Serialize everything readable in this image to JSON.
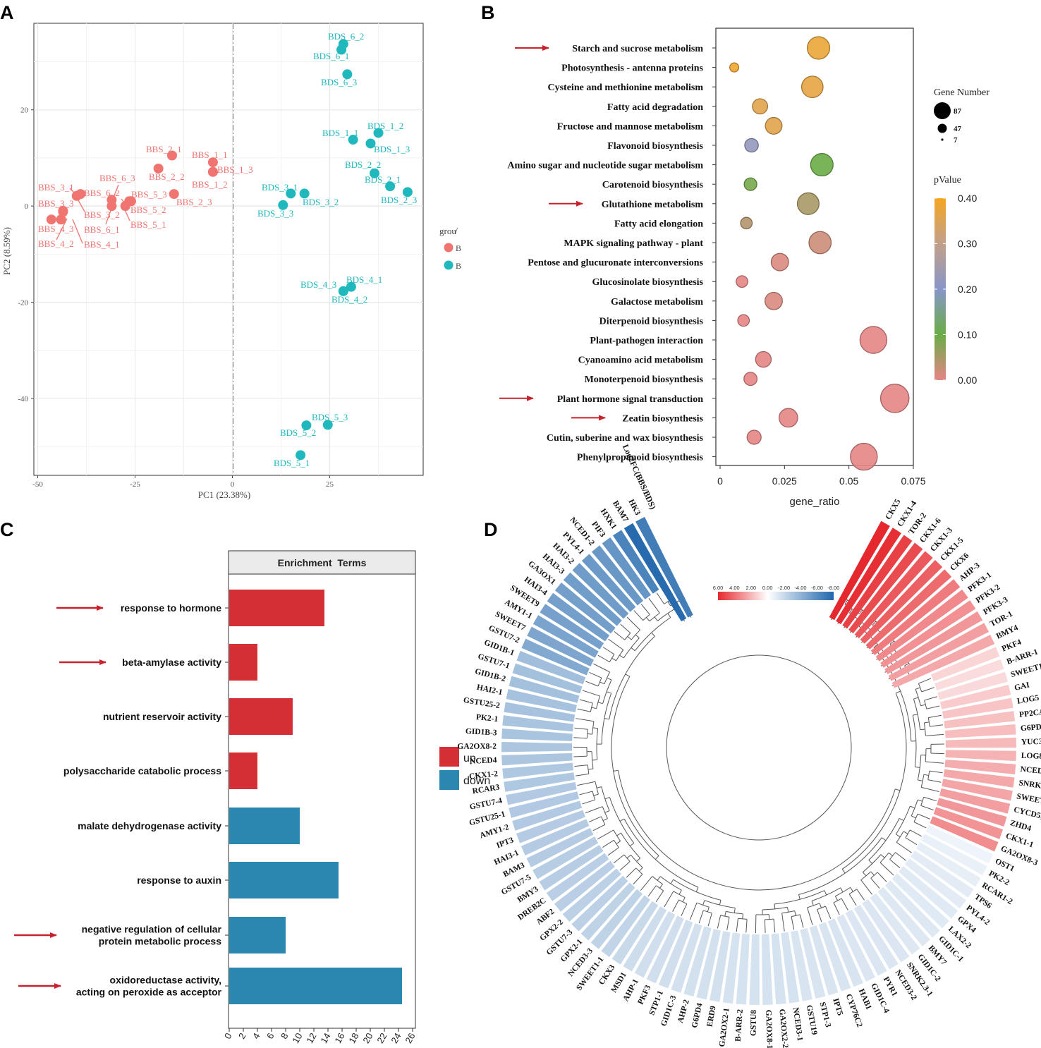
{
  "panel_letters": [
    "A",
    "B",
    "C",
    "D"
  ],
  "colors": {
    "bbs": "#f07470",
    "bds": "#1fb8bd",
    "up": "#d32f35",
    "down": "#2987b0",
    "arrow": "#c8232c",
    "heat_pos": "#e5282d",
    "heat_neg": "#2166ac"
  },
  "chart_data": [
    {
      "panel": "A",
      "type": "scatter",
      "xlabel": "PC1 (23.38%)",
      "ylabel": "PC2 (8.59%)",
      "xlim": [
        -51,
        49
      ],
      "ylim": [
        -56,
        38
      ],
      "xticks": [
        -50,
        -25,
        0,
        25
      ],
      "yticks": [
        -40,
        -20,
        0,
        20
      ],
      "legend": {
        "title": "grou̸",
        "entries": [
          "B",
          "B"
        ]
      },
      "series": [
        {
          "name": "BBS",
          "points": [
            {
              "label": "BBS_1_1",
              "x": -5,
              "y": 9.1
            },
            {
              "label": "BBS_1_2",
              "x": -5,
              "y": 7.1
            },
            {
              "label": "BBS_1_3",
              "x": -5,
              "y": 7.1
            },
            {
              "label": "BBS_2_1",
              "x": -15.5,
              "y": 10.5
            },
            {
              "label": "BBS_2_2",
              "x": -19,
              "y": 7.8
            },
            {
              "label": "BBS_2_3",
              "x": -15,
              "y": 2.5
            },
            {
              "label": "BBS_3_1",
              "x": -40,
              "y": 2.1
            },
            {
              "label": "BBS_3_2",
              "x": -43.5,
              "y": -1
            },
            {
              "label": "BBS_3_3",
              "x": -43.5,
              "y": -1.2
            },
            {
              "label": "BBS_4_1",
              "x": -44,
              "y": -2.8
            },
            {
              "label": "BBS_4_2",
              "x": -46.5,
              "y": -2.8
            },
            {
              "label": "BBS_4_3",
              "x": -44,
              "y": -2.8
            },
            {
              "label": "BBS_5_1",
              "x": -27.5,
              "y": 0
            },
            {
              "label": "BBS_5_2",
              "x": -26.5,
              "y": 1
            },
            {
              "label": "BBS_5_3",
              "x": -26,
              "y": 1
            },
            {
              "label": "BBS_6_1",
              "x": -31,
              "y": 0
            },
            {
              "label": "BBS_6_2",
              "x": -39,
              "y": 2.5
            },
            {
              "label": "BBS_6_3",
              "x": -31,
              "y": 1.3
            }
          ]
        },
        {
          "name": "BDS",
          "points": [
            {
              "label": "BDS_1_1",
              "x": 31,
              "y": 13.8
            },
            {
              "label": "BDS_1_2",
              "x": 37.5,
              "y": 15.2
            },
            {
              "label": "BDS_1_3",
              "x": 35.5,
              "y": 13
            },
            {
              "label": "BDS_2_1",
              "x": 40.5,
              "y": 4.1
            },
            {
              "label": "BDS_2_2",
              "x": 36.5,
              "y": 6.8
            },
            {
              "label": "BDS_2_3",
              "x": 45,
              "y": 2.9
            },
            {
              "label": "BDS_3_1",
              "x": 15,
              "y": 2.6
            },
            {
              "label": "BDS_3_2",
              "x": 18.5,
              "y": 2.6
            },
            {
              "label": "BDS_3_3",
              "x": 13,
              "y": 0.2
            },
            {
              "label": "BDS_4_1",
              "x": 30.5,
              "y": -16.8
            },
            {
              "label": "BDS_4_2",
              "x": 28.5,
              "y": -17.7
            },
            {
              "label": "BDS_4_3",
              "x": 28.5,
              "y": -17.7
            },
            {
              "label": "BDS_5_1",
              "x": 17.5,
              "y": -51.8
            },
            {
              "label": "BDS_5_2",
              "x": 19,
              "y": -45.6
            },
            {
              "label": "BDS_5_3",
              "x": 24.5,
              "y": -45.5
            },
            {
              "label": "BDS_6_1",
              "x": 28,
              "y": 32.5
            },
            {
              "label": "BDS_6_2",
              "x": 28.5,
              "y": 33.7
            },
            {
              "label": "BDS_6_3",
              "x": 29.5,
              "y": 27.4
            }
          ]
        }
      ]
    },
    {
      "panel": "B",
      "type": "scatter",
      "subtype": "bubble",
      "xlabel": "gene_ratio",
      "xlim": [
        0,
        0.075
      ],
      "xticks": [
        "0",
        "0.025",
        "0.05",
        "0.075"
      ],
      "size_legend": {
        "title": "Gene Number",
        "values": [
          87,
          47,
          7
        ]
      },
      "color_legend": {
        "title": "pValue",
        "ticks": [
          "0.40",
          "0.30",
          "0.20",
          "0.10",
          "0.00"
        ],
        "range": [
          0,
          0.4
        ]
      },
      "arrowed_terms": [
        "Starch and sucrose metabolism",
        "Glutathione metabolism",
        "Plant hormone signal transduction",
        "Zeatin biosynthesis"
      ],
      "terms": [
        {
          "term": "Starch and sucrose metabolism",
          "gene_ratio": 0.0382,
          "gene_number": 40,
          "pvalue": 0.38
        },
        {
          "term": "Photosynthesis - antenna proteins",
          "gene_ratio": 0.0055,
          "gene_number": 4,
          "pvalue": 0.39
        },
        {
          "term": "Cysteine and methionine metabolism",
          "gene_ratio": 0.0358,
          "gene_number": 36,
          "pvalue": 0.37
        },
        {
          "term": "Fatty acid degradation",
          "gene_ratio": 0.0155,
          "gene_number": 16,
          "pvalue": 0.36
        },
        {
          "term": "Fructose and mannose metabolism",
          "gene_ratio": 0.0208,
          "gene_number": 20,
          "pvalue": 0.36
        },
        {
          "term": "Flavonoid biosynthesis",
          "gene_ratio": 0.0122,
          "gene_number": 12,
          "pvalue": 0.22
        },
        {
          "term": "Amino sugar and nucleotide sugar metabolism",
          "gene_ratio": 0.0395,
          "gene_number": 40,
          "pvalue": 0.1
        },
        {
          "term": "Carotenoid biosynthesis",
          "gene_ratio": 0.0118,
          "gene_number": 10,
          "pvalue": 0.09
        },
        {
          "term": "Glutathione metabolism",
          "gene_ratio": 0.0342,
          "gene_number": 37,
          "pvalue": 0.05
        },
        {
          "term": "Fatty acid elongation",
          "gene_ratio": 0.0102,
          "gene_number": 8,
          "pvalue": 0.04
        },
        {
          "term": "MAPK signaling pathway - plant",
          "gene_ratio": 0.0388,
          "gene_number": 39,
          "pvalue": 0.02
        },
        {
          "term": "Pentose and glucuronate interconversions",
          "gene_ratio": 0.0232,
          "gene_number": 22,
          "pvalue": 0.01
        },
        {
          "term": "Glucosinolate biosynthesis",
          "gene_ratio": 0.0085,
          "gene_number": 8,
          "pvalue": 0.0
        },
        {
          "term": "Galactose metabolism",
          "gene_ratio": 0.0208,
          "gene_number": 22,
          "pvalue": 0.01
        },
        {
          "term": "Diterpenoid biosynthesis",
          "gene_ratio": 0.0091,
          "gene_number": 8,
          "pvalue": 0.0
        },
        {
          "term": "Plant-pathogen interaction",
          "gene_ratio": 0.0595,
          "gene_number": 60,
          "pvalue": 0.0
        },
        {
          "term": "Cyanoamino acid metabolism",
          "gene_ratio": 0.0168,
          "gene_number": 17,
          "pvalue": 0.0
        },
        {
          "term": "Monoterpenoid biosynthesis",
          "gene_ratio": 0.0118,
          "gene_number": 11,
          "pvalue": 0.0
        },
        {
          "term": "Plant hormone signal transduction",
          "gene_ratio": 0.0678,
          "gene_number": 68,
          "pvalue": 0.0
        },
        {
          "term": "Zeatin biosynthesis",
          "gene_ratio": 0.0265,
          "gene_number": 26,
          "pvalue": 0.0
        },
        {
          "term": "Cutin, suberine and wax biosynthesis",
          "gene_ratio": 0.0132,
          "gene_number": 13,
          "pvalue": 0.0
        },
        {
          "term": "Phenylpropanoid biosynthesis",
          "gene_ratio": 0.0558,
          "gene_number": 60,
          "pvalue": 0.0
        }
      ]
    },
    {
      "panel": "C",
      "type": "bar",
      "orientation": "horizontal",
      "title": "Enrichment  Terms",
      "xlim": [
        0,
        26
      ],
      "xticks": [
        0,
        2,
        4,
        6,
        8,
        10,
        12,
        14,
        16,
        18,
        20,
        22,
        24,
        26
      ],
      "legend": [
        "up",
        "down"
      ],
      "bars": [
        {
          "lines": [
            "response to hormone"
          ],
          "value": 13.5,
          "group": "up",
          "arrow": true
        },
        {
          "lines": [
            "beta-amylase activity"
          ],
          "value": 4,
          "group": "up",
          "arrow": true
        },
        {
          "lines": [
            "nutrient reservoir activity"
          ],
          "value": 9,
          "group": "up",
          "arrow": false
        },
        {
          "lines": [
            "polysaccharide catabolic process"
          ],
          "value": 4,
          "group": "up",
          "arrow": false
        },
        {
          "lines": [
            "malate dehydrogenase activity"
          ],
          "value": 10,
          "group": "down",
          "arrow": false
        },
        {
          "lines": [
            "response to auxin"
          ],
          "value": 15.5,
          "group": "down",
          "arrow": false
        },
        {
          "lines": [
            "negative regulation of cellular",
            "protein metabolic process"
          ],
          "value": 8,
          "group": "down",
          "arrow": true
        },
        {
          "lines": [
            "oxidoreductase activity,",
            "acting on peroxide as acceptor"
          ],
          "value": 24.5,
          "group": "down",
          "arrow": true
        }
      ]
    },
    {
      "panel": "D",
      "type": "heatmap",
      "layout": "circular",
      "column_label": "Log2FC(BBS/BDS)",
      "scale_ticks": [
        "6.00",
        "4.00",
        "2.00",
        "0.00",
        "-2.00",
        "-4.00",
        "-6.00",
        "-8.00"
      ],
      "genes": [
        {
          "name": "CKX5",
          "log2fc": 6.2
        },
        {
          "name": "CKX1-4",
          "log2fc": 6.0
        },
        {
          "name": "TOR-2",
          "log2fc": 5.5
        },
        {
          "name": "CKX1-6",
          "log2fc": 5.2
        },
        {
          "name": "CKX1-3",
          "log2fc": 4.8
        },
        {
          "name": "CKX1-5",
          "log2fc": 4.6
        },
        {
          "name": "CKX6",
          "log2fc": 4.3
        },
        {
          "name": "AHP-3",
          "log2fc": 3.8
        },
        {
          "name": "PFK3-1",
          "log2fc": 3.4
        },
        {
          "name": "PFK3-2",
          "log2fc": 3.2
        },
        {
          "name": "PFK3-3",
          "log2fc": 3.0
        },
        {
          "name": "TOR-1",
          "log2fc": 2.8
        },
        {
          "name": "BMY4",
          "log2fc": 2.5
        },
        {
          "name": "PKF4",
          "log2fc": 1.2
        },
        {
          "name": "B-ARR-1",
          "log2fc": 1.0
        },
        {
          "name": "SWEET1-2",
          "log2fc": 1.1
        },
        {
          "name": "GAI",
          "log2fc": 1.5
        },
        {
          "name": "LOG5",
          "log2fc": 1.7
        },
        {
          "name": "PP2CA",
          "log2fc": 1.8
        },
        {
          "name": "G6PD1",
          "log2fc": 1.9
        },
        {
          "name": "YUC3",
          "log2fc": 2.0
        },
        {
          "name": "LOG8",
          "log2fc": 2.2
        },
        {
          "name": "NCED1-1",
          "log2fc": 2.4
        },
        {
          "name": "SNRK2.3-2",
          "log2fc": 2.5
        },
        {
          "name": "SWEET17",
          "log2fc": 2.6
        },
        {
          "name": "CYCD5;3",
          "log2fc": 2.8
        },
        {
          "name": "ZHD4",
          "log2fc": 3.0
        },
        {
          "name": "CKX1-1",
          "log2fc": 3.1
        },
        {
          "name": "GA2OX8-3",
          "log2fc": 3.3
        },
        {
          "name": "OST1",
          "log2fc": -0.6
        },
        {
          "name": "PK2-2",
          "log2fc": -0.8
        },
        {
          "name": "RCAR1-2",
          "log2fc": -0.9
        },
        {
          "name": "TPS6",
          "log2fc": -1.0
        },
        {
          "name": "PYL4-2",
          "log2fc": -1.0
        },
        {
          "name": "GPX4",
          "log2fc": -1.1
        },
        {
          "name": "LAX2-2",
          "log2fc": -1.1
        },
        {
          "name": "GID1C-1",
          "log2fc": -1.2
        },
        {
          "name": "BMY7",
          "log2fc": -1.2
        },
        {
          "name": "GID1C-2",
          "log2fc": -1.2
        },
        {
          "name": "SNRK2.3-1",
          "log2fc": -1.3
        },
        {
          "name": "NCED3-2",
          "log2fc": -1.3
        },
        {
          "name": "PYR1",
          "log2fc": -1.3
        },
        {
          "name": "GID1C-4",
          "log2fc": -1.3
        },
        {
          "name": "HAB1",
          "log2fc": -1.4
        },
        {
          "name": "CYP76C2",
          "log2fc": -1.4
        },
        {
          "name": "IPT5",
          "log2fc": -1.4
        },
        {
          "name": "STP1-3",
          "log2fc": -1.4
        },
        {
          "name": "GSTU19",
          "log2fc": -1.4
        },
        {
          "name": "NCED3-1",
          "log2fc": -1.5
        },
        {
          "name": "GA2OX2-2",
          "log2fc": -1.5
        },
        {
          "name": "GA2OX8-1",
          "log2fc": -1.5
        },
        {
          "name": "GSTU8",
          "log2fc": -1.5
        },
        {
          "name": "B-ARR-2",
          "log2fc": -1.5
        },
        {
          "name": "GA2OX2-1",
          "log2fc": -1.5
        },
        {
          "name": "ERD9",
          "log2fc": -1.6
        },
        {
          "name": "G6PD4",
          "log2fc": -1.6
        },
        {
          "name": "AHP-2",
          "log2fc": -1.6
        },
        {
          "name": "GID1C-3",
          "log2fc": -1.6
        },
        {
          "name": "STP1-1",
          "log2fc": -1.7
        },
        {
          "name": "PKF3",
          "log2fc": -1.7
        },
        {
          "name": "AHP-1",
          "log2fc": -1.7
        },
        {
          "name": "MSD1",
          "log2fc": -1.8
        },
        {
          "name": "CKX3",
          "log2fc": -2.0
        },
        {
          "name": "SWEET1-1",
          "log2fc": -2.2
        },
        {
          "name": "NCED3-3",
          "log2fc": -2.3
        },
        {
          "name": "GPX2-1",
          "log2fc": -2.3
        },
        {
          "name": "GSTU7-3",
          "log2fc": -2.4
        },
        {
          "name": "GPX2-2",
          "log2fc": -2.4
        },
        {
          "name": "ABF2",
          "log2fc": -2.5
        },
        {
          "name": "DREB2C",
          "log2fc": -2.5
        },
        {
          "name": "BMY3",
          "log2fc": -2.6
        },
        {
          "name": "GSTU7-5",
          "log2fc": -2.6
        },
        {
          "name": "BAM3",
          "log2fc": -2.7
        },
        {
          "name": "HAI3-1",
          "log2fc": -2.7
        },
        {
          "name": "IPT3",
          "log2fc": -2.7
        },
        {
          "name": "AMY1-2",
          "log2fc": -2.8
        },
        {
          "name": "GSTU25-1",
          "log2fc": -2.8
        },
        {
          "name": "GSTU7-4",
          "log2fc": -2.8
        },
        {
          "name": "RCAR3",
          "log2fc": -2.9
        },
        {
          "name": "CKX1-2",
          "log2fc": -2.9
        },
        {
          "name": "NCED4",
          "log2fc": -3.0
        },
        {
          "name": "GA2OX8-2",
          "log2fc": -3.0
        },
        {
          "name": "GID1B-3",
          "log2fc": -3.1
        },
        {
          "name": "PK2-1",
          "log2fc": -3.1
        },
        {
          "name": "GSTU25-2",
          "log2fc": -3.2
        },
        {
          "name": "HAI2-1",
          "log2fc": -3.2
        },
        {
          "name": "GID1B-2",
          "log2fc": -3.3
        },
        {
          "name": "GSTU7-1",
          "log2fc": -3.3
        },
        {
          "name": "GID1B-1",
          "log2fc": -3.4
        },
        {
          "name": "GSTU7-2",
          "log2fc": -4.5
        },
        {
          "name": "SWEET7",
          "log2fc": -4.7
        },
        {
          "name": "AMY1-1",
          "log2fc": -4.8
        },
        {
          "name": "SWEET9",
          "log2fc": -4.9
        },
        {
          "name": "HAI3-4",
          "log2fc": -5.0
        },
        {
          "name": "GA3OX1",
          "log2fc": -5.0
        },
        {
          "name": "HAI3-3",
          "log2fc": -5.1
        },
        {
          "name": "HAI3-2",
          "log2fc": -5.2
        },
        {
          "name": "PYL4-1",
          "log2fc": -5.3
        },
        {
          "name": "NCED1-2",
          "log2fc": -5.4
        },
        {
          "name": "PIF3",
          "log2fc": -5.5
        },
        {
          "name": "HXK1",
          "log2fc": -6.5
        },
        {
          "name": "BAM7",
          "log2fc": -7.8
        },
        {
          "name": "HK3",
          "log2fc": -6.8
        }
      ]
    }
  ]
}
